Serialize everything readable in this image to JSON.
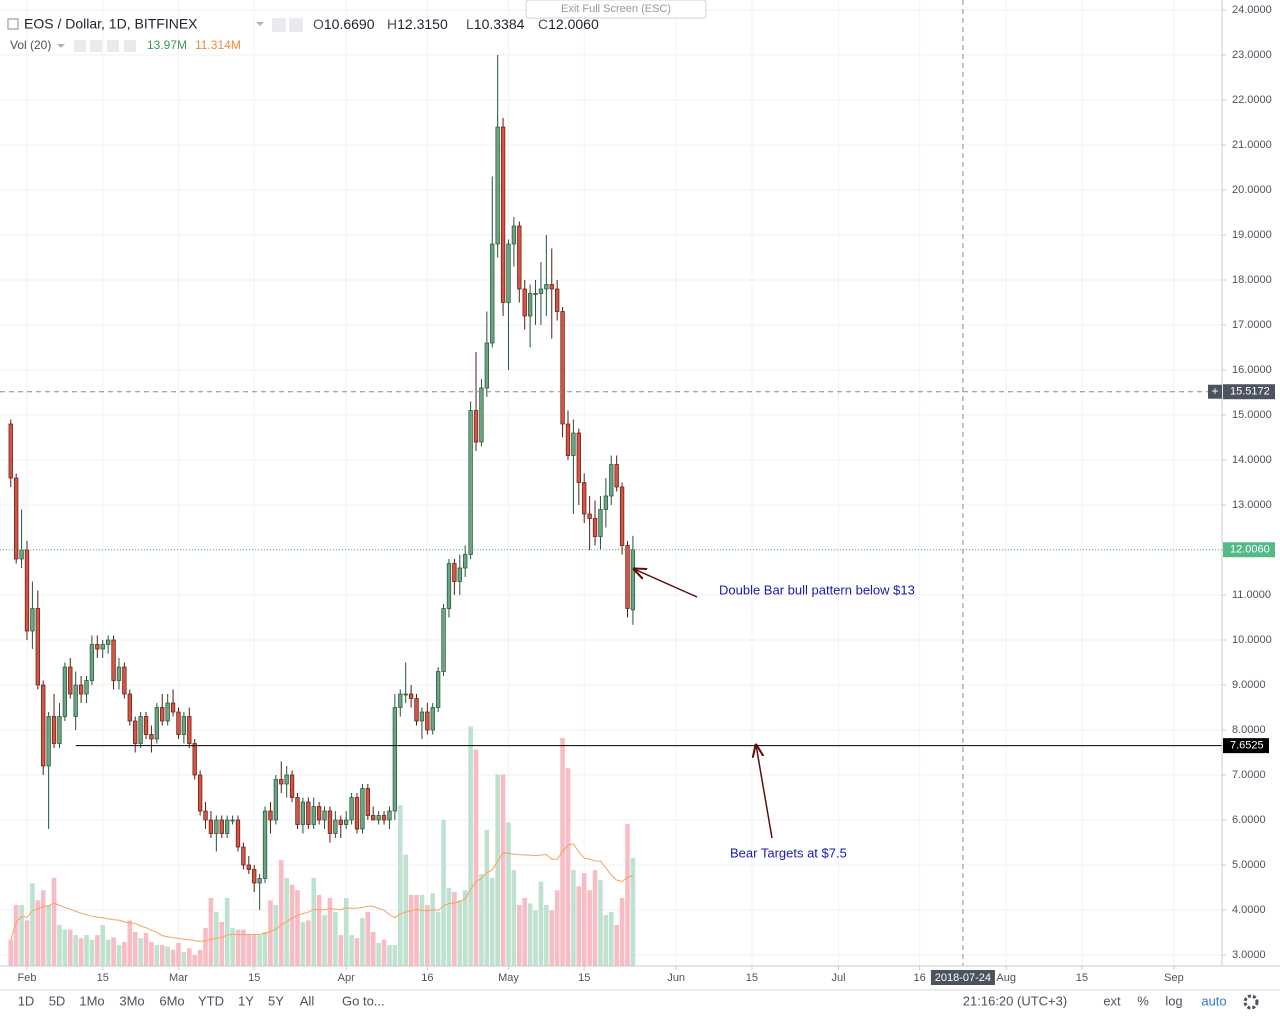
{
  "header": {
    "symbol": "EOS / Dollar, 1D, BITFINEX",
    "ohlc": [
      {
        "key": "O",
        "text": "10.6690"
      },
      {
        "key": "H",
        "text": "12.3150"
      },
      {
        "key": "L",
        "text": "10.3384"
      },
      {
        "key": "C",
        "text": "12.0060"
      }
    ],
    "volume_indicator": "Vol (20)",
    "volume_value": "13.97M",
    "volume_ma_value": "11.314M",
    "exit_button": "Exit Full Screen (ESC)"
  },
  "toolbar": {
    "periods": [
      "1D",
      "5D",
      "1Mo",
      "3Mo",
      "6Mo",
      "YTD",
      "1Y",
      "5Y",
      "All"
    ],
    "goto": "Go to...",
    "time": "21:16:20 (UTC+3)",
    "options": [
      "ext",
      "%",
      "log",
      "auto"
    ]
  },
  "chart_data": {
    "type": "candlestick",
    "x": [
      -3,
      -2,
      -1,
      0,
      1,
      2,
      3,
      4,
      5,
      6,
      7,
      8,
      9,
      10,
      11,
      12,
      13,
      14,
      15,
      16,
      17,
      18,
      19,
      20,
      21,
      22,
      23,
      24,
      25,
      26,
      27,
      28,
      29,
      30,
      31,
      32,
      33,
      34,
      35,
      36,
      37,
      38,
      39,
      40,
      41,
      42,
      43,
      44,
      45,
      46,
      47,
      48,
      49,
      50,
      51,
      52,
      53,
      54,
      55,
      56,
      57,
      58,
      59,
      60,
      61,
      62,
      63,
      64,
      65,
      66,
      67,
      68,
      69,
      70,
      71,
      72,
      73,
      74,
      75,
      76,
      77,
      78,
      79,
      80,
      81,
      82,
      83,
      84,
      85,
      86,
      87,
      88,
      89,
      90,
      91,
      92,
      93,
      94,
      95,
      96,
      97,
      98,
      99,
      100,
      101,
      102,
      103,
      104,
      105,
      106,
      107,
      108,
      109,
      110,
      111,
      112
    ],
    "open": [
      14.8,
      13.6,
      11.8,
      12.0,
      10.2,
      10.7,
      9.0,
      7.2,
      8.3,
      7.7,
      8.3,
      9.4,
      8.3,
      9.0,
      8.8,
      9.1,
      9.9,
      9.8,
      9.9,
      10.0,
      9.1,
      9.4,
      8.8,
      8.2,
      7.7,
      8.3,
      7.9,
      7.8,
      8.5,
      8.2,
      8.6,
      8.4,
      7.9,
      8.3,
      7.7,
      7.0,
      6.2,
      6.0,
      5.7,
      6.0,
      5.7,
      6.0,
      6.0,
      5.4,
      5.0,
      4.9,
      4.6,
      4.7,
      6.2,
      6.0,
      6.9,
      6.8,
      7.0,
      6.5,
      5.9,
      6.4,
      5.9,
      6.3,
      6.0,
      6.2,
      5.7,
      6.0,
      5.9,
      6.0,
      6.5,
      5.8,
      6.7,
      6.1,
      6.0,
      6.1,
      6.0,
      6.2,
      8.5,
      8.8,
      8.8,
      8.7,
      8.2,
      8.4,
      8.0,
      8.5,
      9.3,
      10.7,
      11.7,
      11.3,
      11.6,
      11.9,
      15.1,
      14.4,
      15.6,
      16.6,
      18.8,
      21.4,
      17.5,
      18.8,
      19.2,
      17.8,
      17.2,
      17.7,
      17.7,
      17.8,
      17.9,
      17.8,
      17.3,
      14.8,
      14.1,
      14.6,
      13.5,
      12.8,
      12.7,
      12.3,
      12.9,
      13.2,
      13.9,
      13.4,
      12.1,
      10.669
    ],
    "high": [
      14.9,
      13.7,
      12.9,
      12.2,
      11.3,
      11.1,
      9.1,
      8.4,
      8.8,
      8.6,
      9.5,
      9.6,
      9.3,
      9.2,
      9.2,
      10.1,
      10.1,
      10.0,
      10.1,
      10.1,
      9.6,
      9.5,
      8.9,
      8.3,
      8.4,
      8.4,
      8.1,
      8.6,
      8.8,
      8.8,
      8.9,
      8.5,
      8.4,
      8.5,
      7.8,
      7.1,
      6.4,
      6.2,
      6.1,
      6.1,
      6.1,
      6.1,
      6.1,
      5.5,
      5.2,
      5.0,
      4.8,
      6.3,
      6.4,
      7.0,
      7.3,
      7.2,
      7.1,
      6.6,
      6.5,
      6.5,
      6.5,
      6.4,
      6.3,
      6.3,
      6.2,
      6.1,
      6.2,
      6.6,
      6.6,
      6.8,
      6.8,
      6.3,
      6.2,
      6.2,
      6.3,
      8.8,
      8.9,
      9.5,
      9.0,
      8.8,
      8.5,
      8.6,
      8.6,
      9.4,
      10.8,
      11.8,
      11.8,
      11.9,
      12.1,
      15.3,
      16.4,
      15.8,
      17.3,
      20.3,
      23.0,
      21.6,
      18.9,
      19.4,
      19.3,
      18.0,
      17.9,
      18.0,
      18.4,
      19.0,
      18.7,
      18.0,
      17.4,
      15.1,
      14.9,
      14.7,
      13.7,
      13.2,
      13.1,
      13.2,
      13.6,
      14.1,
      14.1,
      13.5,
      12.2,
      12.315
    ],
    "low": [
      13.4,
      11.7,
      11.6,
      10.0,
      9.8,
      8.9,
      7.0,
      5.8,
      7.6,
      7.6,
      8.2,
      8.7,
      8.0,
      8.6,
      8.6,
      9.0,
      9.6,
      9.6,
      9.7,
      8.9,
      8.9,
      8.7,
      8.1,
      7.5,
      7.6,
      7.8,
      7.5,
      7.7,
      8.1,
      8.1,
      8.3,
      7.8,
      7.7,
      7.6,
      6.9,
      6.1,
      5.8,
      5.6,
      5.3,
      5.6,
      5.6,
      5.9,
      5.3,
      4.9,
      4.8,
      4.4,
      4.0,
      4.6,
      5.7,
      5.9,
      6.6,
      6.5,
      6.4,
      5.8,
      5.7,
      5.8,
      5.8,
      5.9,
      5.8,
      5.5,
      5.6,
      5.6,
      5.8,
      5.9,
      5.7,
      5.7,
      6.0,
      6.0,
      5.9,
      5.9,
      5.8,
      6.0,
      8.3,
      8.6,
      8.5,
      8.1,
      7.8,
      7.9,
      7.9,
      8.4,
      9.2,
      10.5,
      11.0,
      11.0,
      11.4,
      11.8,
      14.2,
      14.3,
      15.4,
      16.5,
      18.5,
      17.2,
      16.0,
      18.3,
      17.5,
      16.9,
      16.5,
      17.0,
      17.0,
      17.2,
      16.7,
      17.1,
      14.5,
      14.0,
      12.8,
      13.0,
      12.6,
      12.0,
      12.1,
      12.0,
      12.5,
      13.0,
      13.3,
      11.9,
      10.5,
      10.3384
    ],
    "close": [
      13.6,
      11.8,
      12.0,
      10.2,
      10.7,
      9.0,
      7.2,
      8.3,
      7.7,
      8.3,
      9.4,
      8.8,
      9.0,
      8.8,
      9.1,
      9.9,
      9.8,
      9.9,
      10.0,
      9.1,
      9.4,
      8.8,
      8.2,
      7.7,
      8.3,
      7.9,
      7.8,
      8.5,
      8.2,
      8.6,
      8.4,
      7.9,
      8.3,
      7.7,
      7.0,
      6.2,
      6.0,
      5.7,
      6.0,
      5.7,
      6.0,
      6.0,
      5.4,
      5.0,
      4.9,
      4.6,
      4.7,
      6.2,
      6.0,
      6.9,
      6.8,
      7.0,
      6.5,
      5.9,
      6.4,
      5.9,
      6.3,
      6.0,
      6.2,
      5.7,
      6.0,
      5.9,
      6.0,
      6.5,
      5.8,
      6.7,
      6.1,
      6.0,
      6.1,
      6.0,
      6.2,
      8.5,
      8.8,
      8.8,
      8.7,
      8.2,
      8.4,
      8.0,
      8.5,
      9.3,
      10.7,
      11.7,
      11.3,
      11.6,
      11.9,
      15.1,
      14.4,
      15.6,
      16.6,
      18.8,
      21.4,
      17.5,
      18.8,
      19.2,
      17.8,
      17.2,
      17.7,
      17.7,
      17.8,
      17.9,
      17.8,
      17.3,
      14.8,
      14.1,
      14.6,
      13.5,
      12.8,
      12.7,
      12.3,
      12.9,
      13.2,
      13.9,
      13.4,
      12.1,
      10.7,
      12.006
    ],
    "volume": [
      3.4,
      7.9,
      7.9,
      5.9,
      10.7,
      8.5,
      9.8,
      7.9,
      11.4,
      5.3,
      4.7,
      4.7,
      4.0,
      3.6,
      4.0,
      3.4,
      4.0,
      5.3,
      3.4,
      3.7,
      2.7,
      3.1,
      5.9,
      4.4,
      3.6,
      4.3,
      3.1,
      2.7,
      2.7,
      2.5,
      2.1,
      3.0,
      1.8,
      2.3,
      1.4,
      2.1,
      4.9,
      8.8,
      7.0,
      5.7,
      8.8,
      4.9,
      4.7,
      4.7,
      4.0,
      4.0,
      4.0,
      4.4,
      8.5,
      7.9,
      13.7,
      11.4,
      10.5,
      9.8,
      5.7,
      5.9,
      11.4,
      9.2,
      6.6,
      8.8,
      7.0,
      4.0,
      8.8,
      4.0,
      3.6,
      6.2,
      7.0,
      4.4,
      3.0,
      3.4,
      2.7,
      2.7,
      20.8,
      14.4,
      9.2,
      9.2,
      9.2,
      7.9,
      9.4,
      7.0,
      18.9,
      10.1,
      9.6,
      8.5,
      9.8,
      31.0,
      28.0,
      11.9,
      17.6,
      11.4,
      24.8,
      24.8,
      18.6,
      12.4,
      7.9,
      8.8,
      8.1,
      7.2,
      10.9,
      7.9,
      7.2,
      9.8,
      29.5,
      25.6,
      12.4,
      10.3,
      12.0,
      9.8,
      12.4,
      11.1,
      6.6,
      7.0,
      5.3,
      8.8,
      18.4,
      13.97
    ],
    "volume_ma_period": 20,
    "up_color": "#6ba583",
    "down_color": "#d75442",
    "up_volume_color": "#bfe2d0",
    "down_volume_color": "#f8bcc4",
    "volume_ma_color": "#f5a25d",
    "xlim": [
      -4.99,
      220.89
    ],
    "ylim": [
      2.7556,
      24.2222
    ],
    "vlim": [
      0,
      125
    ],
    "xticks": [
      {
        "value": 0,
        "label": "Feb"
      },
      {
        "value": 14,
        "label": "15"
      },
      {
        "value": 28,
        "label": "Mar"
      },
      {
        "value": 42,
        "label": "15"
      },
      {
        "value": 59,
        "label": "Apr"
      },
      {
        "value": 74,
        "label": "16"
      },
      {
        "value": 89,
        "label": "May"
      },
      {
        "value": 103,
        "label": "15"
      },
      {
        "value": 120,
        "label": "Jun"
      },
      {
        "value": 134,
        "label": "15"
      },
      {
        "value": 150,
        "label": "Jul"
      },
      {
        "value": 165,
        "label": "16"
      },
      {
        "value": 181,
        "label": "Aug"
      },
      {
        "value": 195,
        "label": "15"
      },
      {
        "value": 212,
        "label": "Sep"
      }
    ],
    "yticks": [
      {
        "value": 3,
        "label": "3.0000"
      },
      {
        "value": 4,
        "label": "4.0000"
      },
      {
        "value": 5,
        "label": "5.0000"
      },
      {
        "value": 6,
        "label": "6.0000"
      },
      {
        "value": 7,
        "label": "7.0000"
      },
      {
        "value": 8,
        "label": "8.0000"
      },
      {
        "value": 9,
        "label": "9.0000"
      },
      {
        "value": 10,
        "label": "10.0000"
      },
      {
        "value": 11,
        "label": "11.0000"
      },
      {
        "value": 12,
        "label": "12.0000"
      },
      {
        "value": 13,
        "label": "13.0000"
      },
      {
        "value": 14,
        "label": "14.0000"
      },
      {
        "value": 15,
        "label": "15.0000"
      },
      {
        "value": 16,
        "label": "16.0000"
      },
      {
        "value": 17,
        "label": "17.0000"
      },
      {
        "value": 18,
        "label": "18.0000"
      },
      {
        "value": 19,
        "label": "19.0000"
      },
      {
        "value": 20,
        "label": "20.0000"
      },
      {
        "value": 21,
        "label": "21.0000"
      },
      {
        "value": 22,
        "label": "22.0000"
      },
      {
        "value": 23,
        "label": "23.0000"
      },
      {
        "value": 24,
        "label": "24.0000"
      }
    ],
    "grid": true,
    "last_price": {
      "value": 12.006,
      "label": "12.0060"
    },
    "support_line": {
      "value": 7.6525,
      "from_x": 9
    },
    "crosshair": {
      "x": 173,
      "x_label": "2018-07-24",
      "y": 15.5172
    },
    "annotations": [
      {
        "text": "Double Bar bull pattern below $13"
      },
      {
        "text": "Bear Targets at $7.5"
      }
    ]
  }
}
